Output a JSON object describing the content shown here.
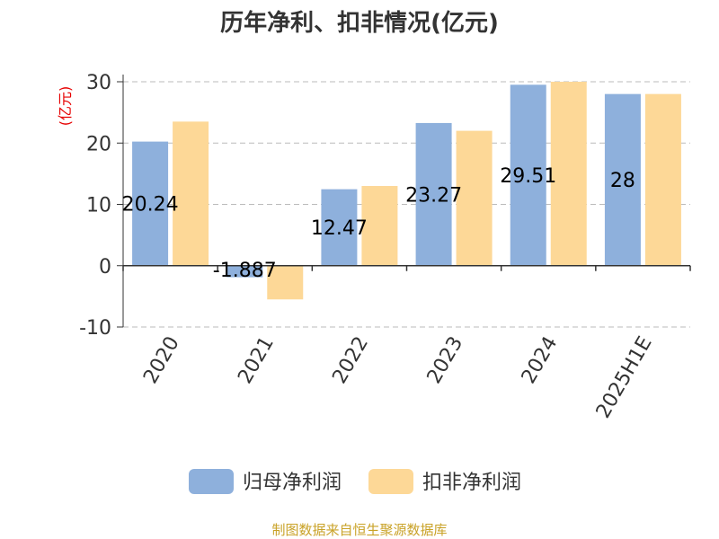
{
  "chart_data": {
    "type": "bar",
    "title": "历年净利、扣非情况(亿元)",
    "unit_label": "(亿元)",
    "categories": [
      "2020",
      "2021",
      "2022",
      "2023",
      "2024",
      "2025H1E"
    ],
    "series": [
      {
        "name": "归母净利润",
        "color": "#8eb0dc",
        "values": [
          20.24,
          -1.887,
          12.47,
          23.27,
          29.51,
          28
        ],
        "labels": [
          "20.24",
          "-1.887",
          "12.47",
          "23.27",
          "29.51",
          "28"
        ]
      },
      {
        "name": "扣非净利润",
        "color": "#fdd897",
        "values": [
          23.5,
          -5.5,
          13.0,
          22.0,
          30.0,
          28.0
        ]
      }
    ],
    "yticks": [
      "30",
      "20",
      "10",
      "0",
      "-10"
    ],
    "ylim": [
      -10,
      30
    ],
    "grid": true,
    "legend": "bottom",
    "source": "制图数据来自恒生聚源数据库"
  }
}
